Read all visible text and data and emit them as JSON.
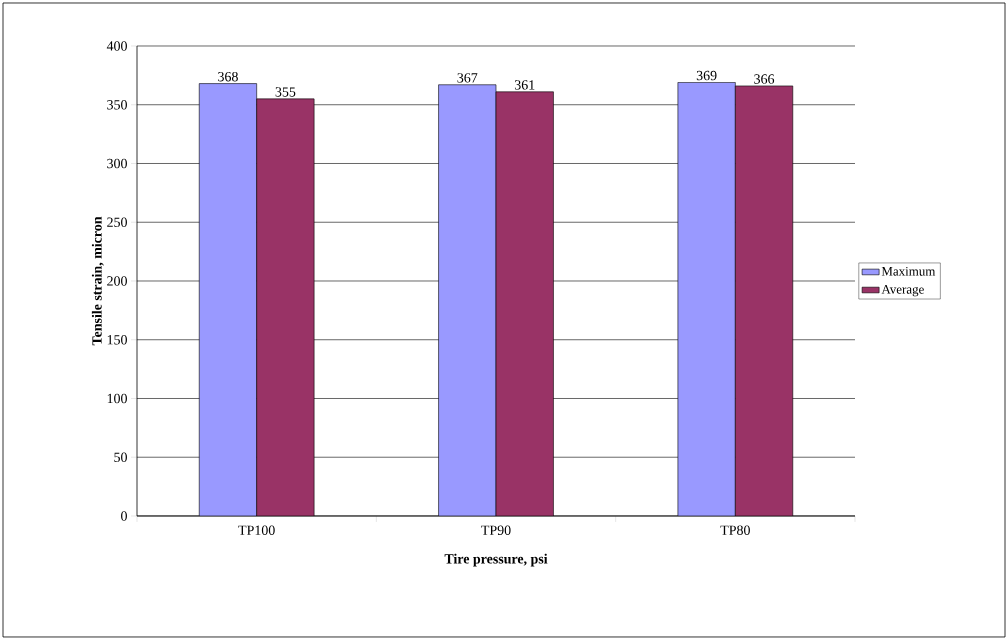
{
  "chart_data": {
    "type": "bar",
    "xlabel": "Tire pressure, psi",
    "ylabel": "Tensile strain, micron",
    "categories": [
      "TP100",
      "TP90",
      "TP80"
    ],
    "series": [
      {
        "name": "Maximum",
        "color": "#9999ff",
        "values": [
          368,
          367,
          369
        ]
      },
      {
        "name": "Average",
        "color": "#993366",
        "values": [
          355,
          361,
          366
        ]
      }
    ],
    "ylim": [
      0,
      400
    ],
    "yticks": [
      0,
      50,
      100,
      150,
      200,
      250,
      300,
      350,
      400
    ],
    "grid": "y",
    "legend": "right",
    "data_labels": true
  }
}
